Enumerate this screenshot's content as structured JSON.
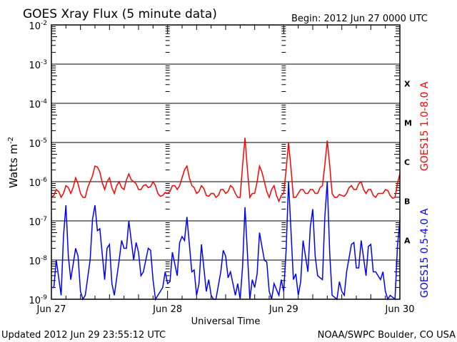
{
  "chart_data": {
    "type": "line",
    "title": "GOES Xray Flux (5 minute data)",
    "begin": "Begin:  2012 Jun 27 0000 UTC",
    "xlabel": "Universal Time",
    "ylabel": "Watts m",
    "ylabel_sup": "-2",
    "yscale": "log",
    "ylim": [
      1e-09,
      0.01
    ],
    "y_ticks": [
      {
        "base": "10",
        "exp": "-2"
      },
      {
        "base": "10",
        "exp": "-3"
      },
      {
        "base": "10",
        "exp": "-4"
      },
      {
        "base": "10",
        "exp": "-5"
      },
      {
        "base": "10",
        "exp": "-6"
      },
      {
        "base": "10",
        "exp": "-7"
      },
      {
        "base": "10",
        "exp": "-8"
      },
      {
        "base": "10",
        "exp": "-9"
      }
    ],
    "x_ticks": [
      "Jun 27",
      "Jun 28",
      "Jun 29",
      "Jun 30"
    ],
    "xlim_hours": [
      0,
      72
    ],
    "flare_classes": [
      "X",
      "M",
      "C",
      "B",
      "A"
    ],
    "x_hours_step": 1,
    "series": [
      {
        "name": "GOES15 1.0-8.0 A",
        "color": "#ff0000",
        "log10_values": [
          -6.4,
          -6.2,
          -6.4,
          -6.1,
          -6.3,
          -5.9,
          -6.3,
          -6.4,
          -6.0,
          -5.6,
          -5.75,
          -6.2,
          -5.9,
          -6.3,
          -6.0,
          -6.2,
          -5.8,
          -6.0,
          -6.2,
          -6.1,
          -6.15,
          -6.0,
          -6.3,
          -6.35,
          -6.3,
          -6.1,
          -6.2,
          -5.9,
          -5.6,
          -6.1,
          -6.3,
          -6.1,
          -6.35,
          -6.3,
          -6.4,
          -6.2,
          -6.3,
          -6.1,
          -6.3,
          -6.4,
          -4.88,
          -6.4,
          -6.3,
          -5.6,
          -6.0,
          -6.4,
          -6.1,
          -6.5,
          -6.3,
          -5.0,
          -6.4,
          -6.3,
          -6.2,
          -6.3,
          -6.2,
          -6.3,
          -6.1,
          -4.95,
          -6.3,
          -6.4,
          -6.35,
          -6.3,
          -6.1,
          -6.2,
          -6.0,
          -6.3,
          -6.2,
          -6.4,
          -6.3,
          -6.2,
          -6.35,
          -6.4,
          -5.8
        ]
      },
      {
        "name": "GOES15 0.5-4.0 A",
        "color": "#0000ff",
        "log10_values": [
          -8.7,
          -8.0,
          -8.9,
          -6.6,
          -8.5,
          -7.7,
          -8.8,
          -8.9,
          -8.0,
          -6.6,
          -7.2,
          -8.5,
          -7.6,
          -8.9,
          -8.0,
          -7.7,
          -7.0,
          -8.0,
          -7.8,
          -8.3,
          -7.7,
          -8.5,
          -8.9,
          -8.7,
          -8.6,
          -7.8,
          -8.4,
          -7.4,
          -6.9,
          -8.3,
          -8.9,
          -7.6,
          -8.8,
          -8.9,
          -9.0,
          -8.3,
          -7.9,
          -8.3,
          -8.9,
          -9.0,
          -6.65,
          -9.0,
          -8.7,
          -7.3,
          -8.0,
          -8.8,
          -8.6,
          -8.9,
          -8.8,
          -6.0,
          -8.5,
          -8.9,
          -7.5,
          -8.3,
          -6.7,
          -8.4,
          -8.5,
          -6.0,
          -8.9,
          -9.0,
          -8.8,
          -8.3,
          -7.6,
          -8.2,
          -7.5,
          -8.4,
          -7.6,
          -8.3,
          -8.5,
          -8.8,
          -8.9,
          -9.0,
          -7.0
        ]
      }
    ]
  },
  "footer": {
    "updated": "Updated 2012 Jun 29 23:55:12 UTC",
    "credit": "NOAA/SWPC Boulder, CO USA"
  }
}
